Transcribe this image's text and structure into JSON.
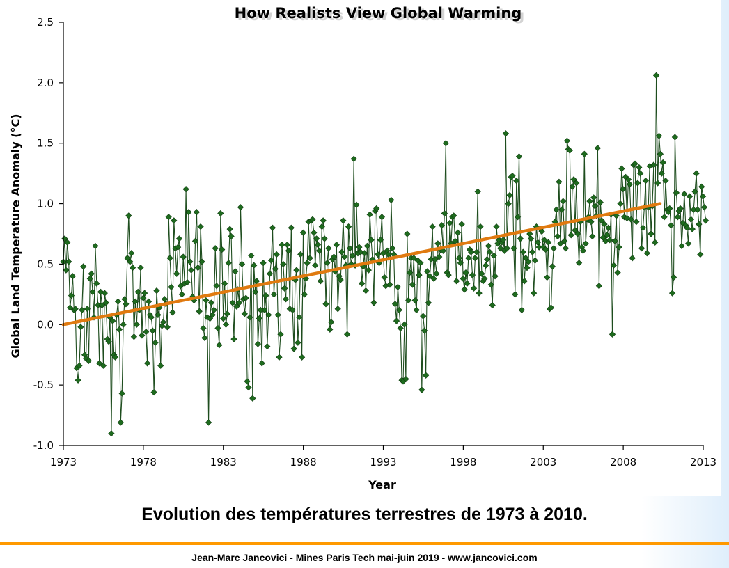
{
  "caption": "Evolution des températures terrestres de 1973 à 2010.",
  "footer": "Jean-Marc Jancovici - Mines Paris Tech mai-juin 2019 - www.jancovici.com",
  "colors": {
    "series": "#1e4d1e",
    "marker": "#1e6b1e",
    "trend": "#e07a10",
    "rule": "#ff9900"
  },
  "chart_data": {
    "type": "scatter",
    "title": "How Realists View Global Warming",
    "xlabel": "Year",
    "ylabel": "Global Land Temperature Anomaly (°C)",
    "xlim": [
      1973,
      2013
    ],
    "ylim": [
      -1.0,
      2.5
    ],
    "x_ticks": [
      "1973",
      "1978",
      "1983",
      "1988",
      "1993",
      "1998",
      "2003",
      "2008",
      "2013"
    ],
    "y_ticks": [
      "-1.0",
      "-0.5",
      "0.0",
      "0.5",
      "1.0",
      "1.5",
      "2.0",
      "2.5"
    ],
    "grid": false,
    "legend": "none",
    "series": [
      {
        "style": "line-with-diamond-markers",
        "x_start": 1973.0,
        "x_step_years": 0.0833,
        "y": [
          0.52,
          0.71,
          0.45,
          0.68,
          0.52,
          0.14,
          0.24,
          0.4,
          0.12,
          0.13,
          -0.36,
          -0.46,
          -0.34,
          -0.02,
          0.12,
          0.48,
          -0.25,
          -0.28,
          0.13,
          -0.3,
          0.38,
          0.42,
          0.27,
          0.06,
          0.65,
          0.34,
          0.16,
          -0.32,
          0.27,
          0.16,
          -0.34,
          0.26,
          0.18,
          -0.12,
          -0.14,
          0.06,
          -0.9,
          0.03,
          -0.25,
          -0.27,
          0.08,
          0.19,
          -0.04,
          -0.81,
          -0.57,
          0.0,
          0.21,
          0.17,
          0.55,
          0.9,
          0.52,
          0.59,
          0.47,
          -0.1,
          0.19,
          0.0,
          0.27,
          0.12,
          0.47,
          -0.09,
          0.22,
          0.26,
          -0.06,
          -0.32,
          0.19,
          0.08,
          0.06,
          -0.05,
          -0.56,
          -0.15,
          0.28,
          0.08,
          0.14,
          -0.34,
          -0.01,
          0.02,
          0.21,
          0.17,
          -0.02,
          0.89,
          0.55,
          0.31,
          0.1,
          0.86,
          0.63,
          0.42,
          0.64,
          0.71,
          0.32,
          0.25,
          0.56,
          0.34,
          1.12,
          0.35,
          0.93,
          0.52,
          0.45,
          0.23,
          0.2,
          0.69,
          0.93,
          0.47,
          0.11,
          0.81,
          0.52,
          -0.03,
          -0.11,
          0.2,
          0.06,
          -0.81,
          0.05,
          0.18,
          0.08,
          0.12,
          0.63,
          0.32,
          -0.03,
          -0.17,
          0.92,
          0.62,
          0.05,
          0.34,
          0.0,
          0.09,
          0.51,
          0.79,
          0.73,
          0.18,
          -0.12,
          0.44,
          0.15,
          0.29,
          0.18,
          0.97,
          0.5,
          0.21,
          0.09,
          0.22,
          -0.47,
          -0.52,
          0.06,
          0.57,
          -0.61,
          0.49,
          0.27,
          0.36,
          -0.16,
          0.05,
          0.12,
          -0.32,
          0.51,
          0.12,
          0.24,
          -0.18,
          0.08,
          0.42,
          0.53,
          0.8,
          0.25,
          0.46,
          0.58,
          0.08,
          -0.27,
          -0.08,
          0.66,
          0.5,
          0.3,
          0.21,
          0.66,
          0.61,
          0.13,
          0.8,
          0.12,
          -0.2,
          0.37,
          0.45,
          -0.15,
          0.06,
          0.58,
          -0.27,
          0.76,
          0.25,
          0.38,
          0.51,
          0.85,
          0.55,
          0.86,
          0.87,
          0.76,
          0.49,
          0.71,
          0.66,
          0.61,
          0.36,
          0.81,
          0.86,
          0.71,
          0.17,
          0.51,
          0.63,
          -0.04,
          0.02,
          0.54,
          0.56,
          0.44,
          0.66,
          0.13,
          0.4,
          0.37,
          0.6,
          0.86,
          0.56,
          0.49,
          -0.08,
          0.81,
          0.63,
          0.5,
          0.57,
          1.37,
          0.49,
          0.99,
          0.59,
          0.64,
          0.6,
          0.34,
          0.48,
          0.59,
          0.28,
          0.65,
          0.45,
          0.91,
          0.7,
          0.54,
          0.18,
          0.94,
          0.96,
          0.58,
          0.51,
          0.7,
          0.89,
          0.59,
          0.39,
          0.32,
          0.61,
          0.58,
          0.33,
          1.03,
          0.63,
          0.58,
          0.17,
          0.03,
          0.31,
          0.12,
          -0.03,
          -0.46,
          -0.47,
          0.0,
          -0.45,
          0.75,
          0.2,
          0.43,
          0.55,
          0.33,
          0.55,
          0.2,
          0.12,
          0.53,
          0.41,
          0.51,
          -0.54,
          0.07,
          -0.05,
          -0.42,
          0.44,
          0.18,
          0.4,
          0.54,
          0.81,
          0.38,
          0.54,
          0.42,
          0.67,
          0.56,
          0.62,
          0.82,
          0.61,
          0.92,
          1.5,
          0.43,
          0.41,
          0.84,
          0.67,
          0.89,
          0.9,
          0.69,
          0.36,
          0.76,
          0.55,
          0.51,
          0.83,
          0.38,
          0.29,
          0.43,
          0.34,
          0.55,
          0.62,
          0.6,
          0.41,
          0.3,
          0.55,
          0.6,
          1.1,
          0.26,
          0.81,
          0.42,
          0.36,
          0.38,
          0.49,
          0.54,
          0.65,
          0.6,
          0.33,
          0.16,
          0.57,
          0.4,
          0.81,
          0.67,
          0.7,
          0.63,
          0.68,
          0.7,
          0.61,
          1.58,
          0.63,
          1.0,
          1.07,
          1.22,
          1.23,
          0.63,
          0.25,
          1.19,
          0.89,
          1.39,
          0.71,
          0.12,
          0.6,
          0.36,
          0.55,
          0.47,
          0.52,
          0.75,
          0.71,
          0.6,
          0.26,
          0.53,
          0.81,
          0.68,
          0.64,
          0.79,
          0.77,
          0.64,
          0.7,
          0.62,
          0.39,
          0.68,
          0.13,
          0.14,
          0.48,
          0.63,
          0.85,
          0.95,
          0.73,
          1.18,
          0.67,
          0.95,
          1.02,
          0.69,
          0.63,
          1.52,
          1.45,
          1.44,
          0.74,
          1.14,
          1.2,
          0.78,
          1.17,
          0.75,
          0.51,
          0.85,
          0.64,
          0.61,
          1.41,
          0.67,
          0.87,
          0.89,
          1.02,
          0.85,
          0.73,
          1.05,
          0.98,
          0.9,
          1.46,
          0.32,
          1.01,
          0.86,
          0.72,
          0.83,
          0.69,
          0.74,
          0.8,
          0.7,
          0.91,
          -0.08,
          0.49,
          0.69,
          0.9,
          0.43,
          0.64,
          1.0,
          1.29,
          1.12,
          0.89,
          1.22,
          0.88,
          1.2,
          1.16,
          0.87,
          0.55,
          1.32,
          1.33,
          0.85,
          1.17,
          1.3,
          1.25,
          0.63,
          0.8,
          0.97,
          1.19,
          0.59,
          0.97,
          1.31,
          0.75,
          0.98,
          1.32,
          0.68,
          2.06,
          1.17,
          1.56,
          1.41,
          1.25,
          1.34,
          0.89,
          1.19,
          0.95,
          0.93,
          0.96,
          0.82,
          0.26,
          0.39,
          1.55,
          1.09,
          0.89,
          0.94,
          0.96,
          0.65,
          0.84,
          1.08,
          0.82,
          0.8,
          0.67,
          1.06,
          0.87,
          0.79,
          0.95,
          1.1,
          1.25,
          0.95,
          0.83,
          0.58,
          1.14,
          1.06,
          0.97,
          0.86
        ]
      },
      {
        "style": "trend-line",
        "x": [
          1973,
          2010.3
        ],
        "y": [
          0.0,
          1.0
        ]
      }
    ]
  }
}
